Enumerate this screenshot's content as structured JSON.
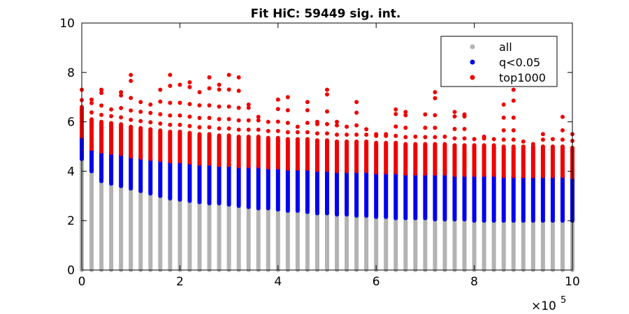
{
  "chart_data": {
    "type": "scatter",
    "title": "Fit HiC: 59449 sig. int.",
    "xlabel": "",
    "ylabel": "",
    "x_scale_label": "×10",
    "x_scale_exponent": "5",
    "xlim": [
      0,
      10
    ],
    "ylim": [
      0,
      10
    ],
    "xticks": [
      0,
      2,
      4,
      6,
      8,
      10
    ],
    "yticks": [
      0,
      2,
      4,
      6,
      8,
      10
    ],
    "grid": false,
    "legend_position": "top-right",
    "x": [
      0.0,
      0.2,
      0.4,
      0.6,
      0.8,
      1.0,
      1.2,
      1.4,
      1.6,
      1.8,
      2.0,
      2.2,
      2.4,
      2.6,
      2.8,
      3.0,
      3.2,
      3.4,
      3.6,
      3.8,
      4.0,
      4.2,
      4.4,
      4.6,
      4.8,
      5.0,
      5.2,
      5.4,
      5.6,
      5.8,
      6.0,
      6.2,
      6.4,
      6.6,
      6.8,
      7.0,
      7.2,
      7.4,
      7.6,
      7.8,
      8.0,
      8.2,
      8.4,
      8.6,
      8.8,
      9.0,
      9.2,
      9.4,
      9.6,
      9.8,
      10.0
    ],
    "series": [
      {
        "name": "all",
        "color": "#b3b3b3",
        "y_min": 0,
        "y_max": [
          4.5,
          4.0,
          3.6,
          3.5,
          3.4,
          3.3,
          3.2,
          3.1,
          3.0,
          2.9,
          2.85,
          2.8,
          2.75,
          2.7,
          2.7,
          2.65,
          2.6,
          2.55,
          2.5,
          2.5,
          2.45,
          2.4,
          2.4,
          2.35,
          2.3,
          2.3,
          2.25,
          2.25,
          2.2,
          2.2,
          2.15,
          2.15,
          2.1,
          2.1,
          2.1,
          2.1,
          2.05,
          2.05,
          2.05,
          2.05,
          2.0,
          2.0,
          2.0,
          2.0,
          2.0,
          2.0,
          2.0,
          2.0,
          2.0,
          2.0,
          2.0
        ]
      },
      {
        "name": "q<0.05",
        "color": "#0000ee",
        "y_max": [
          5.4,
          4.9,
          4.8,
          4.75,
          4.7,
          4.6,
          4.55,
          4.5,
          4.45,
          4.4,
          4.4,
          4.35,
          4.3,
          4.3,
          4.25,
          4.25,
          4.2,
          4.2,
          4.2,
          4.15,
          4.15,
          4.1,
          4.1,
          4.1,
          4.05,
          4.05,
          4.0,
          4.0,
          4.0,
          4.0,
          3.95,
          3.95,
          3.95,
          3.9,
          3.9,
          3.9,
          3.9,
          3.9,
          3.85,
          3.85,
          3.85,
          3.85,
          3.85,
          3.8,
          3.8,
          3.8,
          3.8,
          3.8,
          3.8,
          3.8,
          3.75
        ]
      },
      {
        "name": "top1000",
        "color": "#ee0000",
        "y_max": [
          7.3,
          6.9,
          7.3,
          6.5,
          7.2,
          7.9,
          6.8,
          6.7,
          7.3,
          7.9,
          7.5,
          7.6,
          7.2,
          7.8,
          7.5,
          7.9,
          7.8,
          6.7,
          6.2,
          6.0,
          6.9,
          7.0,
          5.8,
          6.8,
          6.0,
          7.3,
          6.0,
          5.8,
          6.8,
          5.7,
          5.5,
          5.5,
          6.5,
          6.4,
          5.4,
          6.3,
          7.2,
          5.4,
          6.4,
          6.3,
          5.3,
          5.4,
          5.3,
          6.7,
          7.3,
          5.2,
          5.1,
          5.5,
          5.3,
          6.2,
          5.5
        ]
      }
    ]
  }
}
